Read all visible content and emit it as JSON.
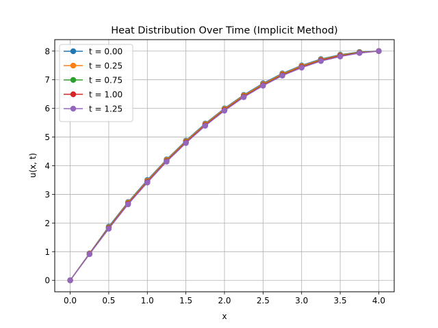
{
  "chart_data": {
    "type": "line",
    "title": "Heat Distribution Over Time (Implicit Method)",
    "xlabel": "x",
    "ylabel": "u(x, t)",
    "xlim": [
      -0.2,
      4.2
    ],
    "ylim": [
      -0.4,
      8.4
    ],
    "xticks": [
      "0.0",
      "0.5",
      "1.0",
      "1.5",
      "2.0",
      "2.5",
      "3.0",
      "3.5",
      "4.0"
    ],
    "yticks": [
      "0",
      "1",
      "2",
      "3",
      "4",
      "5",
      "6",
      "7",
      "8"
    ],
    "grid": true,
    "legend_position": "top-left",
    "x": [
      0.0,
      0.25,
      0.5,
      0.75,
      1.0,
      1.25,
      1.5,
      1.75,
      2.0,
      2.25,
      2.5,
      2.75,
      3.0,
      3.25,
      3.5,
      3.75,
      4.0
    ],
    "series": [
      {
        "name": "t = 0.00",
        "color": "#1f77b4",
        "values": [
          0,
          0.94,
          1.875,
          2.73,
          3.5,
          4.22,
          4.875,
          5.47,
          6.0,
          6.47,
          6.875,
          7.22,
          7.5,
          7.72,
          7.875,
          7.97,
          8.0
        ]
      },
      {
        "name": "t = 0.25",
        "color": "#ff7f0e",
        "values": [
          0,
          0.93,
          1.85,
          2.71,
          3.47,
          4.2,
          4.85,
          5.45,
          5.98,
          6.45,
          6.85,
          7.2,
          7.48,
          7.7,
          7.86,
          7.96,
          8.0
        ]
      },
      {
        "name": "t = 0.75",
        "color": "#2ca02c",
        "values": [
          0,
          0.92,
          1.83,
          2.68,
          3.44,
          4.17,
          4.82,
          5.42,
          5.95,
          6.42,
          6.82,
          7.17,
          7.45,
          7.68,
          7.84,
          7.95,
          8.0
        ]
      },
      {
        "name": "t = 1.00",
        "color": "#d62728",
        "values": [
          0,
          0.915,
          1.82,
          2.67,
          3.43,
          4.16,
          4.81,
          5.41,
          5.94,
          6.41,
          6.81,
          7.16,
          7.44,
          7.67,
          7.83,
          7.94,
          8.0
        ]
      },
      {
        "name": "t = 1.25",
        "color": "#9467bd",
        "values": [
          0,
          0.91,
          1.8,
          2.65,
          3.41,
          4.14,
          4.79,
          5.39,
          5.92,
          6.39,
          6.79,
          7.14,
          7.42,
          7.65,
          7.81,
          7.93,
          8.0
        ]
      }
    ]
  }
}
